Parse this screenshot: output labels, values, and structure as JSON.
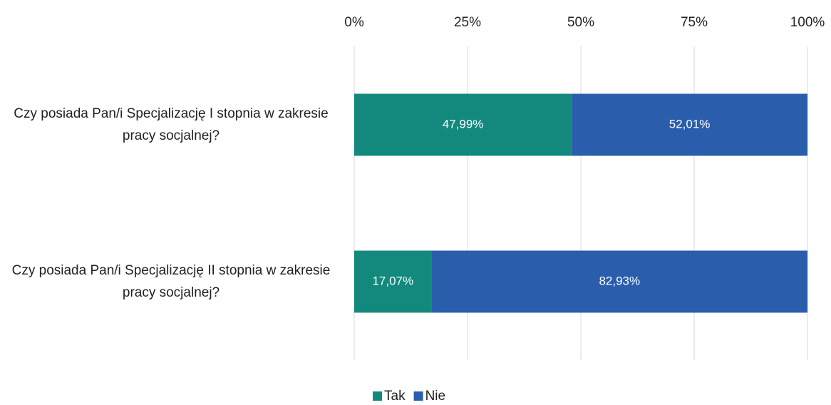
{
  "chart_data": {
    "type": "stacked_barh",
    "categories": [
      "Czy posiada Pan/i Specjalizację I stopnia w zakresie pracy socjalnej?",
      "Czy posiada Pan/i Specjalizację II stopnia w zakresie pracy socjalnej?"
    ],
    "series": [
      {
        "name": "Tak",
        "color": "#13897e",
        "values": [
          47.99,
          17.07
        ],
        "value_labels": [
          "47,99%",
          "17,07%"
        ]
      },
      {
        "name": "Nie",
        "color": "#2a5eac",
        "values": [
          52.01,
          82.93
        ],
        "value_labels": [
          "52,01%",
          "82,93%"
        ]
      }
    ],
    "xlim": [
      0,
      100
    ],
    "xticks": [
      {
        "value": 0,
        "label": "0%"
      },
      {
        "value": 25,
        "label": "25%"
      },
      {
        "value": 50,
        "label": "50%"
      },
      {
        "value": 75,
        "label": "75%"
      },
      {
        "value": 100,
        "label": "100%"
      }
    ],
    "grid": true,
    "legend": "bottom"
  }
}
